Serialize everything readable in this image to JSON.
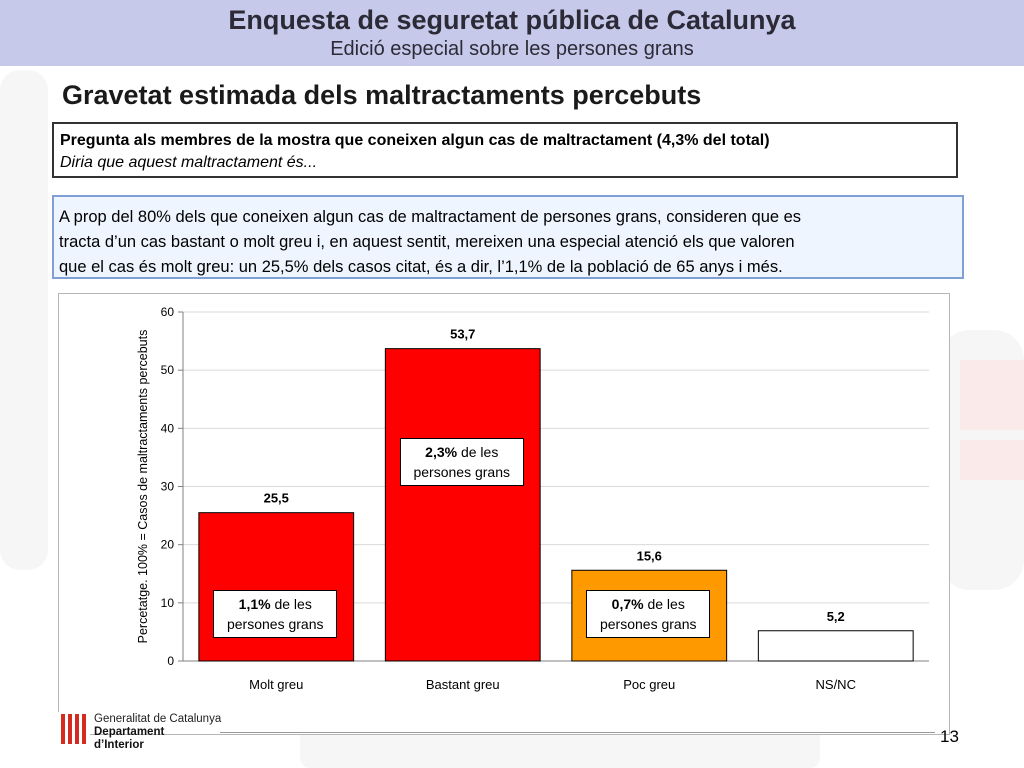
{
  "header": {
    "title": "Enquesta de seguretat pública de Catalunya",
    "subtitle": "Edició especial sobre les persones grans"
  },
  "slide_title": "Gravetat estimada dels maltractaments percebuts",
  "question": {
    "line1": "Pregunta als membres de la mostra que coneixen algun cas de maltractament (4,3% del total)",
    "line2": "Diria que aquest maltractament és..."
  },
  "info": {
    "line1": "A prop del 80% dels que coneixen algun cas de maltractament de persones grans, consideren que es",
    "line2": "tracta d’un cas bastant o molt greu i, en aquest sentit, mereixen una especial atenció els que valoren",
    "line3": "que el cas és molt greu: un 25,5% dels casos citat, és a dir, l’1,1% de la població de 65 anys i més."
  },
  "chart_data": {
    "type": "bar",
    "categories": [
      "Molt greu",
      "Bastant greu",
      "Poc greu",
      "NS/NC"
    ],
    "values": [
      25.5,
      53.7,
      15.6,
      5.2
    ],
    "value_labels": [
      "25,5",
      "53,7",
      "15,6",
      "5,2"
    ],
    "bar_colors": [
      "#ff0000",
      "#ff0000",
      "#ff9900",
      "#ffffff"
    ],
    "ylabel": "Percetatge. 100% = Casos de maltractaments percebuts",
    "ylim": [
      0,
      60
    ],
    "yticks": [
      0,
      10,
      20,
      30,
      40,
      50,
      60
    ],
    "grid": true,
    "annotations": [
      {
        "category": "Molt greu",
        "pct": "1,1%",
        "text1": " de les",
        "text2": "persones grans"
      },
      {
        "category": "Bastant greu",
        "pct": "2,3%",
        "text1": " de les",
        "text2": "persones grans"
      },
      {
        "category": "Poc greu",
        "pct": "0,7%",
        "text1": " de les",
        "text2": "persones grans"
      }
    ]
  },
  "footer": {
    "logo_line1": "Generalitat de Catalunya",
    "logo_line2": "Departament",
    "logo_line3": "d’Interior",
    "page_number": "13"
  },
  "colors": {
    "header_bg": "#c7c9ea",
    "info_border": "#7f9fd5",
    "info_bg": "#eef5ff",
    "logo_red": "#d52b1e"
  }
}
